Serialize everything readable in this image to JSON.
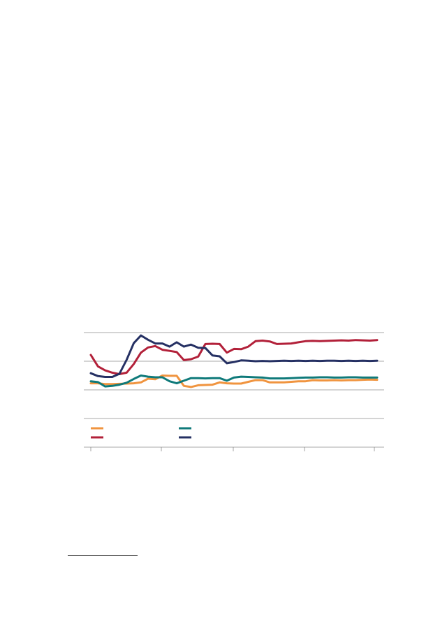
{
  "colors": {
    "orange": "#f0943f",
    "teal": "#0f7a7a",
    "crimson": "#b22039",
    "navy": "#253063",
    "grid": "#8c8c8c",
    "axis": "#8c8c8c"
  },
  "chart_data": {
    "type": "line",
    "title": "",
    "xlabel": "",
    "ylabel": "",
    "grid": true,
    "legend": "bottom-left",
    "x": [
      0,
      1,
      2,
      3,
      4,
      5,
      6,
      7,
      8,
      9,
      10,
      11,
      12,
      13,
      14,
      15,
      16,
      17,
      18,
      19,
      20,
      21,
      22,
      23,
      24,
      25,
      26,
      27,
      28,
      29,
      30,
      31,
      32,
      33,
      34,
      35,
      36,
      37,
      38,
      39,
      40
    ],
    "xlim": [
      0,
      40
    ],
    "ylim": [
      0,
      4
    ],
    "series": [
      {
        "color": "orange",
        "values": [
          2.23,
          2.23,
          2.2,
          2.2,
          2.21,
          2.22,
          2.23,
          2.26,
          2.39,
          2.37,
          2.5,
          2.49,
          2.49,
          2.14,
          2.1,
          2.16,
          2.17,
          2.18,
          2.26,
          2.23,
          2.22,
          2.22,
          2.28,
          2.34,
          2.34,
          2.26,
          2.26,
          2.26,
          2.28,
          2.3,
          2.3,
          2.34,
          2.33,
          2.33,
          2.34,
          2.33,
          2.34,
          2.34,
          2.35,
          2.36,
          2.35
        ]
      },
      {
        "color": "teal",
        "values": [
          2.3,
          2.27,
          2.12,
          2.14,
          2.18,
          2.25,
          2.38,
          2.5,
          2.46,
          2.44,
          2.44,
          2.3,
          2.23,
          2.32,
          2.41,
          2.41,
          2.4,
          2.41,
          2.41,
          2.32,
          2.43,
          2.46,
          2.45,
          2.44,
          2.43,
          2.4,
          2.4,
          2.4,
          2.41,
          2.42,
          2.43,
          2.43,
          2.44,
          2.44,
          2.43,
          2.43,
          2.44,
          2.44,
          2.43,
          2.43,
          2.43
        ]
      },
      {
        "color": "crimson",
        "values": [
          3.22,
          2.82,
          2.68,
          2.6,
          2.55,
          2.6,
          2.9,
          3.3,
          3.48,
          3.53,
          3.4,
          3.36,
          3.32,
          3.04,
          3.07,
          3.16,
          3.6,
          3.61,
          3.6,
          3.3,
          3.43,
          3.42,
          3.51,
          3.7,
          3.72,
          3.69,
          3.6,
          3.61,
          3.62,
          3.66,
          3.7,
          3.71,
          3.7,
          3.71,
          3.72,
          3.73,
          3.72,
          3.74,
          3.73,
          3.72,
          3.74
        ]
      },
      {
        "color": "navy",
        "values": [
          2.58,
          2.48,
          2.45,
          2.45,
          2.56,
          3.05,
          3.63,
          3.9,
          3.75,
          3.62,
          3.62,
          3.51,
          3.66,
          3.51,
          3.58,
          3.47,
          3.46,
          3.2,
          3.17,
          2.93,
          2.97,
          3.03,
          3.02,
          3.0,
          3.01,
          3.0,
          3.01,
          3.02,
          3.01,
          3.02,
          3.01,
          3.02,
          3.01,
          3.02,
          3.02,
          3.01,
          3.02,
          3.01,
          3.02,
          3.01,
          3.02
        ]
      }
    ]
  }
}
